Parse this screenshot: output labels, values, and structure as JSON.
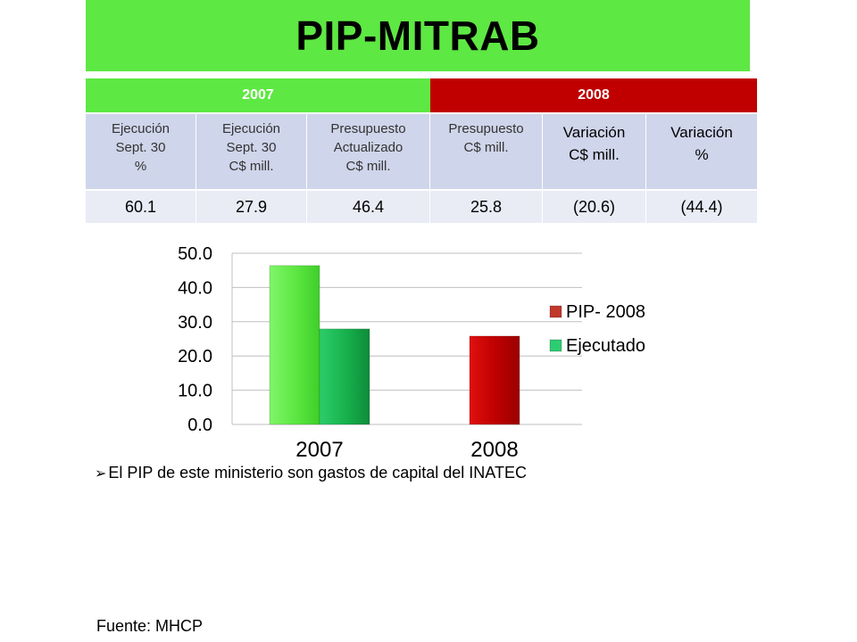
{
  "page_title": "PIP-MITRAB",
  "table": {
    "year_headers": [
      "2007",
      "2008"
    ],
    "col_headers": [
      "Ejecución\nSept. 30\n%",
      "Ejecución\nSept. 30\nC$ mill.",
      "Presupuesto\nActualizado\nC$ mill.",
      "Presupuesto\nC$ mill.",
      "Variación\nC$ mill.",
      "Variación\n%"
    ],
    "values": [
      "60.1",
      "27.9",
      "46.4",
      "25.8",
      "(20.6)",
      "(44.4)"
    ]
  },
  "chart_data": {
    "type": "bar",
    "categories": [
      "2007",
      "2008"
    ],
    "series": [
      {
        "name": "PIP- 2008",
        "values": [
          46.4,
          25.8
        ],
        "colors": [
          "#5ee843",
          "#c00000"
        ]
      },
      {
        "name": "Ejecutado",
        "values": [
          27.9,
          null
        ],
        "color": "#18b34f"
      }
    ],
    "ylim": [
      0,
      50
    ],
    "yticks": [
      "0.0",
      "10.0",
      "20.0",
      "30.0",
      "40.0",
      "50.0"
    ],
    "grid": true,
    "legend_position": "right",
    "legend_colors": [
      "#c0392b",
      "#2ecc71"
    ]
  },
  "bullet_text": "El PIP de este ministerio son gastos de capital del INATEC",
  "source_text": "Fuente: MHCP"
}
